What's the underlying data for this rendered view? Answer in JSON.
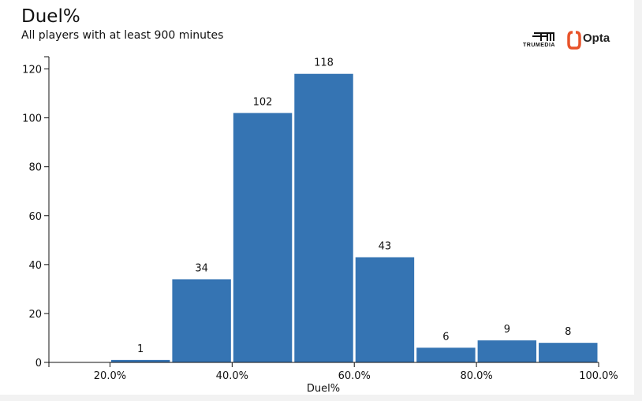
{
  "header": {
    "title": "Duel%",
    "subtitle": "All players with at least 900 minutes"
  },
  "logos": {
    "trumedia": "TRUMEDIA",
    "opta": "Opta"
  },
  "colors": {
    "bar": "#3574b3",
    "axis": "#111111",
    "opta_accent": "#e8532a"
  },
  "chart_data": {
    "type": "bar",
    "title": "Duel%",
    "subtitle": "All players with at least 900 minutes",
    "xlabel": "Duel%",
    "ylabel": "",
    "xlim": [
      10,
      100
    ],
    "ylim": [
      0,
      125
    ],
    "bins": [
      {
        "x0": 20,
        "x1": 30,
        "value": 1
      },
      {
        "x0": 30,
        "x1": 40,
        "value": 34
      },
      {
        "x0": 40,
        "x1": 50,
        "value": 102
      },
      {
        "x0": 50,
        "x1": 60,
        "value": 118
      },
      {
        "x0": 60,
        "x1": 70,
        "value": 43
      },
      {
        "x0": 70,
        "x1": 80,
        "value": 6
      },
      {
        "x0": 80,
        "x1": 90,
        "value": 9
      },
      {
        "x0": 90,
        "x1": 100,
        "value": 8
      }
    ],
    "y_ticks": [
      0,
      20,
      40,
      60,
      80,
      100,
      120
    ],
    "x_ticks": [
      {
        "value": 20,
        "label": "20.0%"
      },
      {
        "value": 40,
        "label": "40.0%"
      },
      {
        "value": 60,
        "label": "60.0%"
      },
      {
        "value": 80,
        "label": "80.0%"
      },
      {
        "value": 100,
        "label": "100.0%"
      }
    ],
    "grid": false
  }
}
